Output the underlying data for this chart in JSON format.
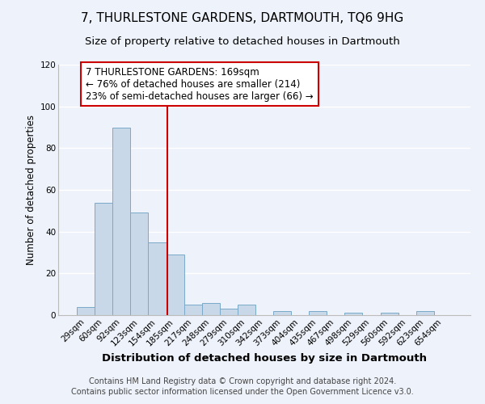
{
  "title": "7, THURLESTONE GARDENS, DARTMOUTH, TQ6 9HG",
  "subtitle": "Size of property relative to detached houses in Dartmouth",
  "xlabel": "Distribution of detached houses by size in Dartmouth",
  "ylabel": "Number of detached properties",
  "bar_labels": [
    "29sqm",
    "60sqm",
    "92sqm",
    "123sqm",
    "154sqm",
    "185sqm",
    "217sqm",
    "248sqm",
    "279sqm",
    "310sqm",
    "342sqm",
    "373sqm",
    "404sqm",
    "435sqm",
    "467sqm",
    "498sqm",
    "529sqm",
    "560sqm",
    "592sqm",
    "623sqm",
    "654sqm"
  ],
  "bar_values": [
    4,
    54,
    90,
    49,
    35,
    29,
    5,
    6,
    3,
    5,
    0,
    2,
    0,
    2,
    0,
    1,
    0,
    1,
    0,
    2,
    0
  ],
  "bar_color": "#c8d8e8",
  "bar_edge_color": "#7aaac8",
  "vline_x": 4.58,
  "vline_color": "#cc0000",
  "ylim": [
    0,
    120
  ],
  "yticks": [
    0,
    20,
    40,
    60,
    80,
    100,
    120
  ],
  "annotation_box_text": "7 THURLESTONE GARDENS: 169sqm\n← 76% of detached houses are smaller (214)\n23% of semi-detached houses are larger (66) →",
  "annotation_box_edge_color": "#cc0000",
  "annotation_box_facecolor": "#ffffff",
  "footer_text": "Contains HM Land Registry data © Crown copyright and database right 2024.\nContains public sector information licensed under the Open Government Licence v3.0.",
  "background_color": "#eef2fa",
  "grid_color": "#ffffff",
  "title_fontsize": 11,
  "subtitle_fontsize": 9.5,
  "xlabel_fontsize": 9.5,
  "ylabel_fontsize": 8.5,
  "tick_fontsize": 7.5,
  "ann_fontsize": 8.5,
  "footer_fontsize": 7
}
